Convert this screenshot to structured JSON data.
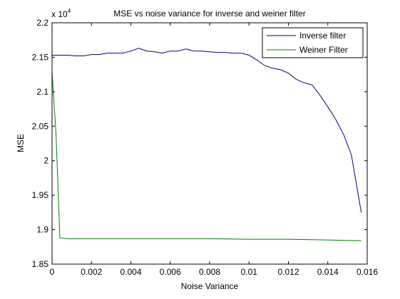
{
  "chart_data": {
    "type": "line",
    "title": "MSE vs noise variance for inverse and weiner filter",
    "xlabel": "Noise Variance",
    "ylabel": "MSE",
    "xlim": [
      0,
      0.016
    ],
    "ylim": [
      18500,
      22000
    ],
    "x_ticks": [
      0,
      0.002,
      0.004,
      0.006,
      0.008,
      0.01,
      0.012,
      0.014,
      0.016
    ],
    "x_tick_labels": [
      "0",
      "0.002",
      "0.004",
      "0.006",
      "0.008",
      "0.01",
      "0.012",
      "0.014",
      "0.016"
    ],
    "y_ticks": [
      18500,
      19000,
      19500,
      20000,
      20500,
      21000,
      21500,
      22000
    ],
    "y_tick_labels": [
      "1.85",
      "1.9",
      "1.95",
      "2",
      "2.05",
      "2.1",
      "2.15",
      "2.2"
    ],
    "y_exponent_label": "x 10",
    "y_exponent_power": "4",
    "grid": false,
    "legend_position": "top-right",
    "series": [
      {
        "name": "Inverse filter",
        "color": "#00008b",
        "x": [
          0,
          0.0004,
          0.0008,
          0.0012,
          0.0016,
          0.002,
          0.0024,
          0.0028,
          0.0032,
          0.0036,
          0.004,
          0.0044,
          0.0048,
          0.0052,
          0.0056,
          0.006,
          0.0064,
          0.0068,
          0.0072,
          0.0076,
          0.008,
          0.0084,
          0.0088,
          0.0092,
          0.0096,
          0.01,
          0.0104,
          0.0108,
          0.0112,
          0.0116,
          0.012,
          0.0124,
          0.0128,
          0.0132,
          0.0136,
          0.014,
          0.0144,
          0.0148,
          0.0152,
          0.0157
        ],
        "values": [
          21530,
          21530,
          21530,
          21520,
          21520,
          21540,
          21540,
          21560,
          21560,
          21560,
          21590,
          21630,
          21590,
          21580,
          21560,
          21590,
          21590,
          21620,
          21590,
          21590,
          21580,
          21570,
          21570,
          21560,
          21560,
          21530,
          21460,
          21380,
          21340,
          21320,
          21270,
          21180,
          21130,
          21100,
          20950,
          20780,
          20600,
          20380,
          20080,
          19250
        ]
      },
      {
        "name": "Weiner Filter",
        "color": "#007f00",
        "x": [
          0,
          0.0002,
          0.0004,
          0.0008,
          0.002,
          0.004,
          0.006,
          0.008,
          0.01,
          0.012,
          0.014,
          0.0157
        ],
        "values": [
          21280,
          20400,
          18880,
          18870,
          18870,
          18870,
          18870,
          18870,
          18860,
          18860,
          18850,
          18840
        ]
      }
    ]
  }
}
